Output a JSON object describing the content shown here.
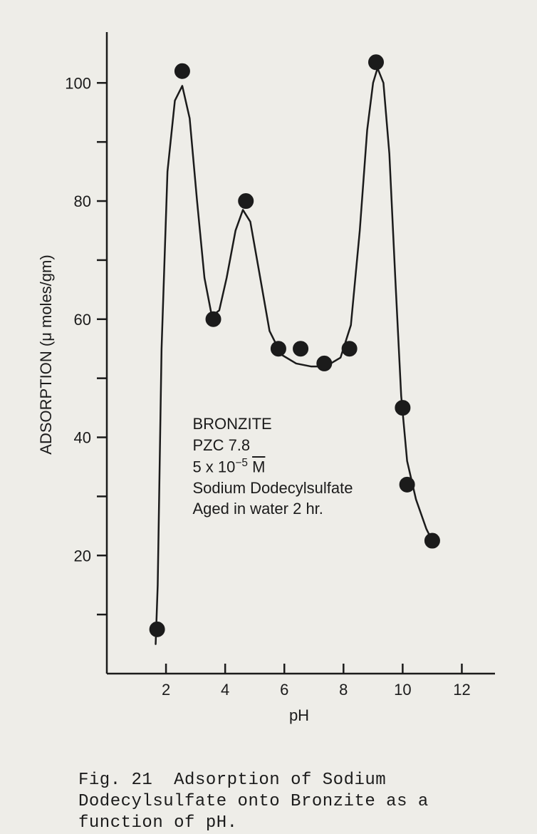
{
  "chart": {
    "type": "scatter-with-curve",
    "xlabel": "pH",
    "ylabel": "ADSORPTION (μ moles/gm)",
    "xlim": [
      0,
      13
    ],
    "ylim": [
      0,
      108
    ],
    "xtick_step": 2,
    "ytick_step": 20,
    "tick_label_fontsize": 22,
    "axis_label_fontsize": 22,
    "axis_color": "#1b1b1b",
    "axis_linewidth": 2.5,
    "tick_length": 14,
    "background_color": "#eeede8",
    "marker": {
      "shape": "circle",
      "radius": 10.5,
      "fill": "#1b1b1b",
      "stroke": "#1b1b1b"
    },
    "line": {
      "color": "#1b1b1b",
      "width": 2.5
    },
    "points": [
      {
        "x": 1.7,
        "y": 7.5
      },
      {
        "x": 2.55,
        "y": 102.0
      },
      {
        "x": 3.6,
        "y": 60.0
      },
      {
        "x": 4.7,
        "y": 80.0
      },
      {
        "x": 5.8,
        "y": 55.0
      },
      {
        "x": 6.55,
        "y": 55.0
      },
      {
        "x": 7.35,
        "y": 52.5
      },
      {
        "x": 8.2,
        "y": 55.0
      },
      {
        "x": 9.1,
        "y": 103.5
      },
      {
        "x": 10.0,
        "y": 45.0
      },
      {
        "x": 10.15,
        "y": 32.0
      },
      {
        "x": 11.0,
        "y": 22.5
      }
    ],
    "curve": [
      {
        "x": 1.65,
        "y": 5.0
      },
      {
        "x": 1.72,
        "y": 15.0
      },
      {
        "x": 1.85,
        "y": 55.0
      },
      {
        "x": 2.05,
        "y": 85.0
      },
      {
        "x": 2.3,
        "y": 97.0
      },
      {
        "x": 2.55,
        "y": 99.5
      },
      {
        "x": 2.8,
        "y": 94.0
      },
      {
        "x": 3.05,
        "y": 80.0
      },
      {
        "x": 3.3,
        "y": 67.0
      },
      {
        "x": 3.55,
        "y": 60.5
      },
      {
        "x": 3.8,
        "y": 61.5
      },
      {
        "x": 4.05,
        "y": 67.0
      },
      {
        "x": 4.35,
        "y": 75.0
      },
      {
        "x": 4.6,
        "y": 78.5
      },
      {
        "x": 4.85,
        "y": 76.5
      },
      {
        "x": 5.15,
        "y": 68.0
      },
      {
        "x": 5.5,
        "y": 58.0
      },
      {
        "x": 5.9,
        "y": 54.0
      },
      {
        "x": 6.4,
        "y": 52.5
      },
      {
        "x": 6.9,
        "y": 52.0
      },
      {
        "x": 7.4,
        "y": 52.0
      },
      {
        "x": 7.9,
        "y": 53.5
      },
      {
        "x": 8.25,
        "y": 59.0
      },
      {
        "x": 8.55,
        "y": 75.0
      },
      {
        "x": 8.8,
        "y": 92.0
      },
      {
        "x": 9.0,
        "y": 100.0
      },
      {
        "x": 9.15,
        "y": 102.5
      },
      {
        "x": 9.35,
        "y": 100.0
      },
      {
        "x": 9.55,
        "y": 88.0
      },
      {
        "x": 9.75,
        "y": 67.0
      },
      {
        "x": 9.95,
        "y": 47.0
      },
      {
        "x": 10.15,
        "y": 36.0
      },
      {
        "x": 10.45,
        "y": 29.5
      },
      {
        "x": 10.8,
        "y": 24.5
      },
      {
        "x": 11.1,
        "y": 21.5
      }
    ],
    "annotation": {
      "lines": [
        "BRONZITE",
        "PZC 7.8",
        "5 x 10⁻⁵ M",
        "Sodium Dodecylsulfate",
        "Aged in water 2 hr."
      ],
      "fontsize": 22,
      "pos_data": {
        "x": 2.9,
        "y": 44
      }
    }
  },
  "caption": {
    "prefix": "Fig. 21",
    "text": "Adsorption of Sodium Dodecylsulfate onto Bronzite as a function of pH.",
    "fontfamily": "Courier New",
    "fontsize": 24
  }
}
